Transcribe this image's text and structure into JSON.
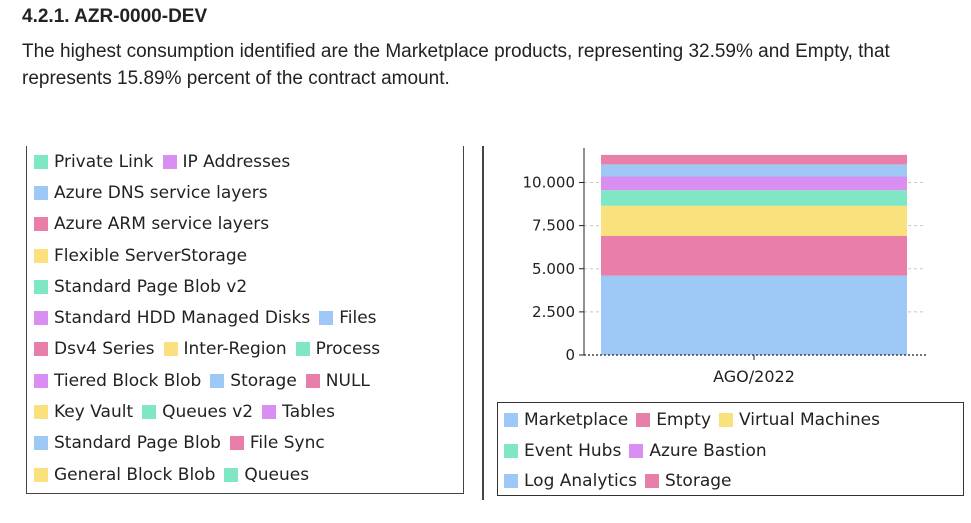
{
  "section": {
    "title": "4.2.1. AZR-0000-DEV",
    "paragraph": "The highest consumption identified are the Marketplace products, representing 32.59% and Empty, that represents 15.89% percent of the contract amount."
  },
  "colors": {
    "blue": "#9ec9f7",
    "pink": "#e87fab",
    "yellow": "#f9e17e",
    "teal": "#7fe6c6",
    "violet": "#d98ef2"
  },
  "left_legend": {
    "rows": [
      [
        {
          "label": "Private Link",
          "color": "#7fe6c6"
        },
        {
          "label": "IP Addresses",
          "color": "#d98ef2"
        }
      ],
      [
        {
          "label": "Azure DNS service layers",
          "color": "#9ec9f7"
        }
      ],
      [
        {
          "label": "Azure ARM service layers",
          "color": "#e87fab"
        }
      ],
      [
        {
          "label": "Flexible ServerStorage",
          "color": "#f9e17e"
        }
      ],
      [
        {
          "label": "Standard Page Blob v2",
          "color": "#7fe6c6"
        }
      ],
      [
        {
          "label": "Standard HDD Managed Disks",
          "color": "#d98ef2"
        },
        {
          "label": "Files",
          "color": "#9ec9f7"
        }
      ],
      [
        {
          "label": "Dsv4 Series",
          "color": "#e87fab"
        },
        {
          "label": "Inter-Region",
          "color": "#f9e17e"
        },
        {
          "label": "Process",
          "color": "#7fe6c6"
        }
      ],
      [
        {
          "label": "Tiered Block Blob",
          "color": "#d98ef2"
        },
        {
          "label": "Storage",
          "color": "#9ec9f7"
        },
        {
          "label": "NULL",
          "color": "#e87fab"
        }
      ],
      [
        {
          "label": "Key Vault",
          "color": "#f9e17e"
        },
        {
          "label": "Queues v2",
          "color": "#7fe6c6"
        },
        {
          "label": "Tables",
          "color": "#d98ef2"
        }
      ],
      [
        {
          "label": "Standard Page Blob",
          "color": "#9ec9f7"
        },
        {
          "label": "File Sync",
          "color": "#e87fab"
        }
      ],
      [
        {
          "label": "General Block Blob",
          "color": "#f9e17e"
        },
        {
          "label": "Queues",
          "color": "#7fe6c6"
        }
      ]
    ]
  },
  "chart_data": {
    "type": "bar",
    "stacked": true,
    "categories": [
      "AGO/2022"
    ],
    "yticks": [
      "0",
      "2.500",
      "5.000",
      "7.500",
      "10.000"
    ],
    "ylim": [
      0,
      12000
    ],
    "grid": "dashed horizontal at y ticks",
    "series": [
      {
        "name": "Marketplace",
        "color": "#9ec9f7",
        "values": [
          4600
        ]
      },
      {
        "name": "Empty",
        "color": "#e87fab",
        "values": [
          2300
        ]
      },
      {
        "name": "Virtual Machines",
        "color": "#f9e17e",
        "values": [
          1750
        ]
      },
      {
        "name": "Event Hubs",
        "color": "#7fe6c6",
        "values": [
          900
        ]
      },
      {
        "name": "Azure Bastion",
        "color": "#d98ef2",
        "values": [
          800
        ]
      },
      {
        "name": "Log Analytics",
        "color": "#9ec9f7",
        "values": [
          700
        ]
      },
      {
        "name": "Storage",
        "color": "#e87fab",
        "values": [
          550
        ]
      }
    ],
    "legend": {
      "placement": "bottom",
      "rows": [
        [
          "Marketplace",
          "Empty",
          "Virtual Machines"
        ],
        [
          "Event Hubs",
          "Azure Bastion"
        ],
        [
          "Log Analytics",
          "Storage"
        ]
      ]
    }
  }
}
